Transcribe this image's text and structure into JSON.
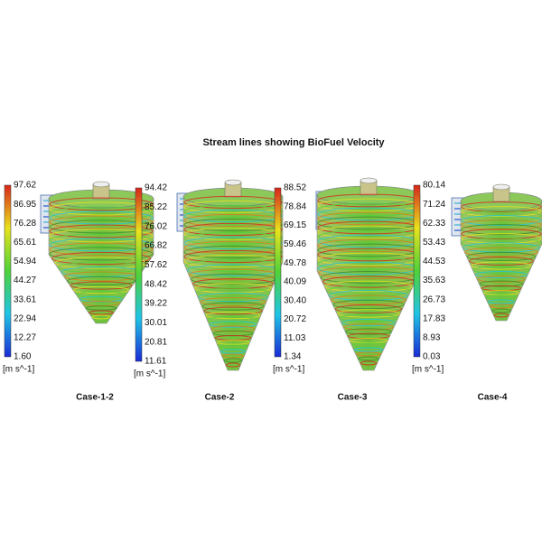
{
  "title": "Stream lines showing BioFuel Velocity",
  "panels": [
    {
      "ticks": [
        "97.62",
        "86.95",
        "76.28",
        "65.61",
        "54.94",
        "44.27",
        "33.61",
        "22.94",
        "12.27",
        "1.60"
      ],
      "unit": "[m s^-1]",
      "label": "Case-1-2"
    },
    {
      "ticks": [
        "94.42",
        "85.22",
        "76.02",
        "66.82",
        "57.62",
        "48.42",
        "39.22",
        "30.01",
        "20.81",
        "11.61"
      ],
      "unit": "[m s^-1]",
      "label": "Case-2"
    },
    {
      "ticks": [
        "88.52",
        "78.84",
        "69.15",
        "59.46",
        "49.78",
        "40.09",
        "30.40",
        "20.72",
        "11.03",
        "1.34"
      ],
      "unit": "[m s^-1]",
      "label": "Case-3"
    },
    {
      "ticks": [
        "80.14",
        "71.24",
        "62.33",
        "53.43",
        "44.53",
        "35.63",
        "26.73",
        "17.83",
        "8.93",
        "0.03"
      ],
      "unit": "[m s^-1]",
      "label": "Case-4"
    }
  ]
}
